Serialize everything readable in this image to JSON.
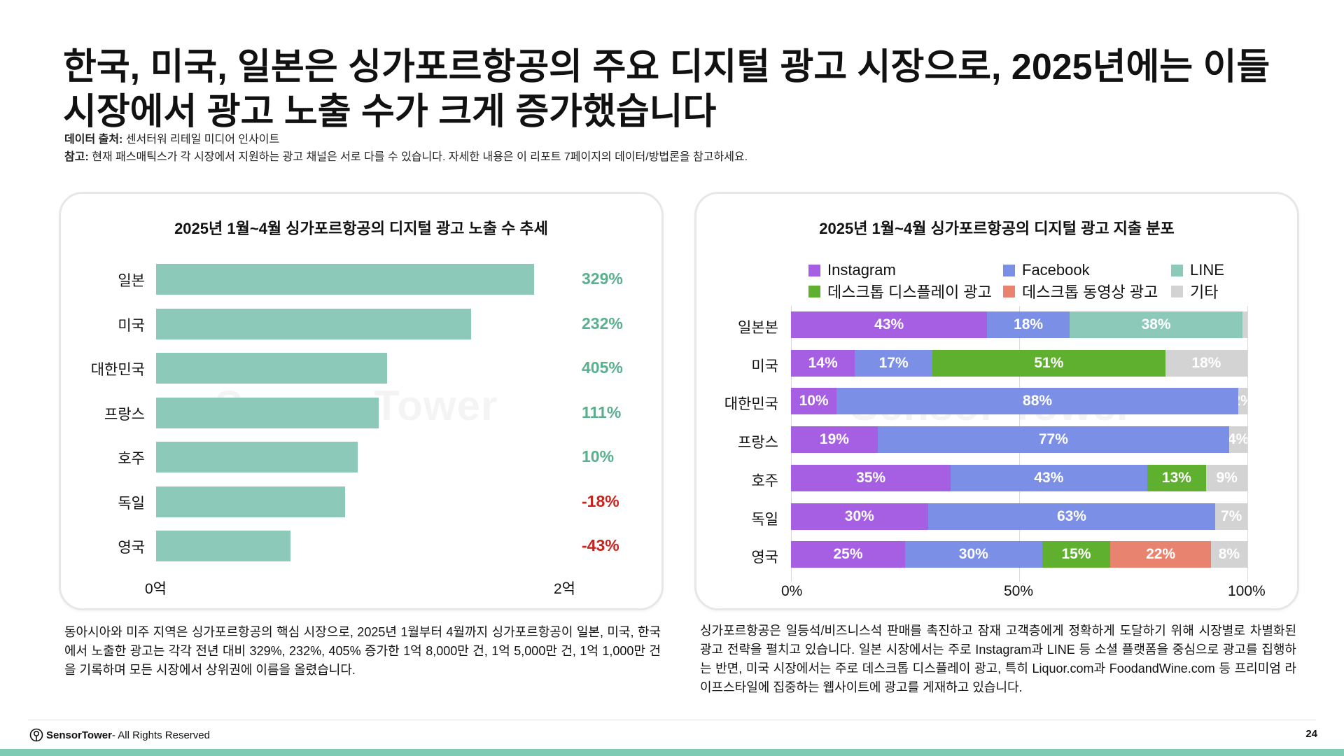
{
  "header": {
    "title": "한국, 미국, 일본은 싱가포르항공의 주요 디지털 광고 시장으로, 2025년에는 이들 시장에서 광고 노출 수가 크게 증가했습니다",
    "source_label": "데이터 출처:",
    "source_text": " 센서터워 리테일 미디어 인사이트",
    "note_label": "참고:",
    "note_text": " 현재 패스매틱스가 각 시장에서 지원하는 광고 채널은 서로 다를 수 있습니다. 자세한 내용은 이 리포트 7페이지의 데이터/방법론을 참고하세요."
  },
  "watermark": "Sensor Tower",
  "chart_data": [
    {
      "type": "bar",
      "orientation": "horizontal",
      "title": "2025년 1월~4월 싱가포르항공의 디지털 광고 노출 수 추세",
      "categories": [
        "일본",
        "미국",
        "대한민국",
        "프랑스",
        "호주",
        "독일",
        "영국"
      ],
      "values": [
        180000000,
        150000000,
        110000000,
        106000000,
        96000000,
        90000000,
        64000000
      ],
      "value_labels": [
        "329%",
        "232%",
        "405%",
        "111%",
        "10%",
        "-18%",
        "-43%"
      ],
      "xlim": [
        0,
        200000000
      ],
      "tick_labels": [
        "0억",
        "2억"
      ],
      "colors": {
        "bar": "#8cc9b8",
        "positive": "#5aaf8e",
        "negative": "#c8241d"
      }
    },
    {
      "type": "bar",
      "orientation": "horizontal",
      "stacked": true,
      "title": "2025년 1월~4월 싱가포르항공의 디지털 광고 지출 분포",
      "categories": [
        "일본본",
        "미국",
        "대한민국",
        "프랑스",
        "호주",
        "독일",
        "영국"
      ],
      "series": [
        {
          "name": "Instagram",
          "color": "#a65fe3",
          "values": [
            43,
            14,
            10,
            19,
            35,
            30,
            25
          ]
        },
        {
          "name": "Facebook",
          "color": "#7b8fe6",
          "values": [
            18,
            17,
            88,
            77,
            43,
            63,
            30
          ]
        },
        {
          "name": "LINE",
          "color": "#8cc9b8",
          "values": [
            38,
            0,
            0,
            0,
            0,
            0,
            0
          ]
        },
        {
          "name": "데스크톱 디스플레이 광고",
          "color": "#5fb02e",
          "values": [
            0,
            51,
            0,
            0,
            13,
            0,
            15
          ]
        },
        {
          "name": "데스크톱 동영상 광고",
          "color": "#e7836f",
          "values": [
            0,
            0,
            0,
            0,
            0,
            0,
            22
          ]
        },
        {
          "name": "기타",
          "color": "#d3d3d3",
          "values": [
            1,
            18,
            2,
            4,
            9,
            7,
            8
          ]
        }
      ],
      "xlim": [
        0,
        100
      ],
      "tick_labels": [
        "0%",
        "50%",
        "100%"
      ],
      "legend_position": "top"
    }
  ],
  "descriptions": {
    "left": "동아시아와 미주 지역은 싱가포르항공의 핵심 시장으로, 2025년 1월부터 4월까지 싱가포르항공이 일본, 미국, 한국에서 노출한 광고는 각각 전년 대비 329%, 232%, 405% 증가한 1억 8,000만 건, 1억 5,000만 건, 1억 1,000만 건을 기록하며 모든 시장에서 상위권에 이름을 올렸습니다.",
    "right": "싱가포르항공은 일등석/비즈니스석 판매를 촉진하고 잠재 고객층에게 정확하게 도달하기 위해 시장별로 차별화된 광고 전략을 펼치고 있습니다. 일본 시장에서는 주로 Instagram과 LINE 등 소셜 플랫폼을 중심으로 광고를 집행하는 반면, 미국 시장에서는 주로 데스크톱 디스플레이 광고, 특히 Liquor.com과 FoodandWine.com 등 프리미엄 라이프스타일에 집중하는 웹사이트에 광고를 게재하고 있습니다."
  },
  "footer": {
    "brand": "SensorTower",
    "rights": " - All Rights Reserved",
    "page": "24"
  }
}
